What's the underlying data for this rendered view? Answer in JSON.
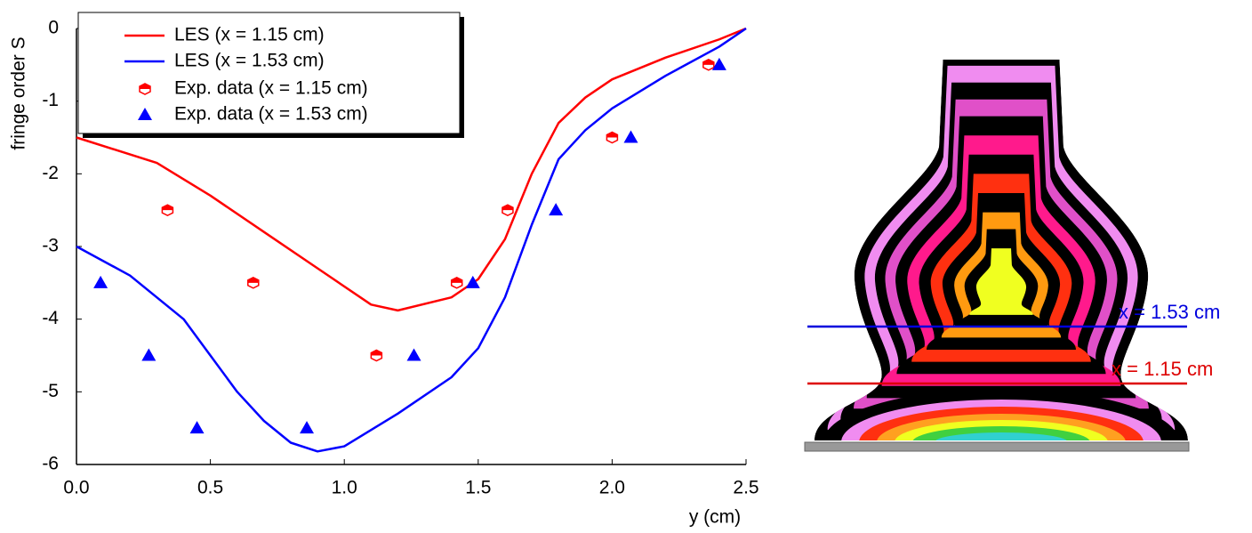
{
  "chart_data": {
    "type": "line",
    "ylabel": "fringe order  S",
    "xlabel": "y  (cm)",
    "xlim": [
      0,
      2.5
    ],
    "ylim": [
      -6,
      0
    ],
    "xticks": [
      {
        "value": 0,
        "label": "0.0"
      },
      0.5,
      {
        "value": 1,
        "label": "1.0"
      },
      1.5,
      {
        "value": 2,
        "label": "2.0"
      },
      2.5
    ],
    "yticks": [
      0,
      -1,
      -2,
      -3,
      -4,
      -5,
      -6
    ],
    "series": [
      {
        "name": "LES (x = 1.15 cm)",
        "type": "line",
        "color": "#ff0000",
        "x": [
          0,
          0.3,
          0.5,
          0.7,
          0.9,
          1.1,
          1.2,
          1.4,
          1.5,
          1.6,
          1.7,
          1.8,
          1.9,
          2.0,
          2.2,
          2.4,
          2.5
        ],
        "values": [
          -1.5,
          -1.85,
          -2.3,
          -2.8,
          -3.3,
          -3.8,
          -3.88,
          -3.7,
          -3.45,
          -2.9,
          -2.0,
          -1.3,
          -0.95,
          -0.7,
          -0.4,
          -0.15,
          0
        ]
      },
      {
        "name": "LES (x = 1.53 cm)",
        "type": "line",
        "color": "#0000ff",
        "x": [
          0,
          0.2,
          0.4,
          0.5,
          0.6,
          0.7,
          0.8,
          0.9,
          1.0,
          1.2,
          1.4,
          1.5,
          1.6,
          1.7,
          1.8,
          1.9,
          2.0,
          2.2,
          2.4,
          2.5
        ],
        "values": [
          -3.0,
          -3.4,
          -4.0,
          -4.5,
          -5.0,
          -5.4,
          -5.7,
          -5.82,
          -5.75,
          -5.3,
          -4.8,
          -4.4,
          -3.7,
          -2.7,
          -1.8,
          -1.4,
          -1.1,
          -0.65,
          -0.25,
          0
        ]
      },
      {
        "name": "Exp. data (x = 1.15 cm)",
        "type": "scatter",
        "color": "#ff0000",
        "x": [
          0.34,
          0.66,
          1.12,
          1.42,
          1.61,
          2.0,
          2.36
        ],
        "values": [
          -2.5,
          -3.5,
          -4.5,
          -3.5,
          -2.5,
          -1.5,
          -0.5
        ]
      },
      {
        "name": "Exp. data (x = 1.53 cm)",
        "type": "scatter",
        "color": "#0000ff",
        "x": [
          0.09,
          0.27,
          0.45,
          0.86,
          1.26,
          1.48,
          1.79,
          2.07,
          2.4
        ],
        "values": [
          -3.5,
          -4.5,
          -5.5,
          -5.5,
          -4.5,
          -3.5,
          -2.5,
          -1.5,
          -0.5
        ]
      }
    ],
    "annotations": [
      "x = 1.53 cm",
      "x = 1.15 cm"
    ]
  }
}
